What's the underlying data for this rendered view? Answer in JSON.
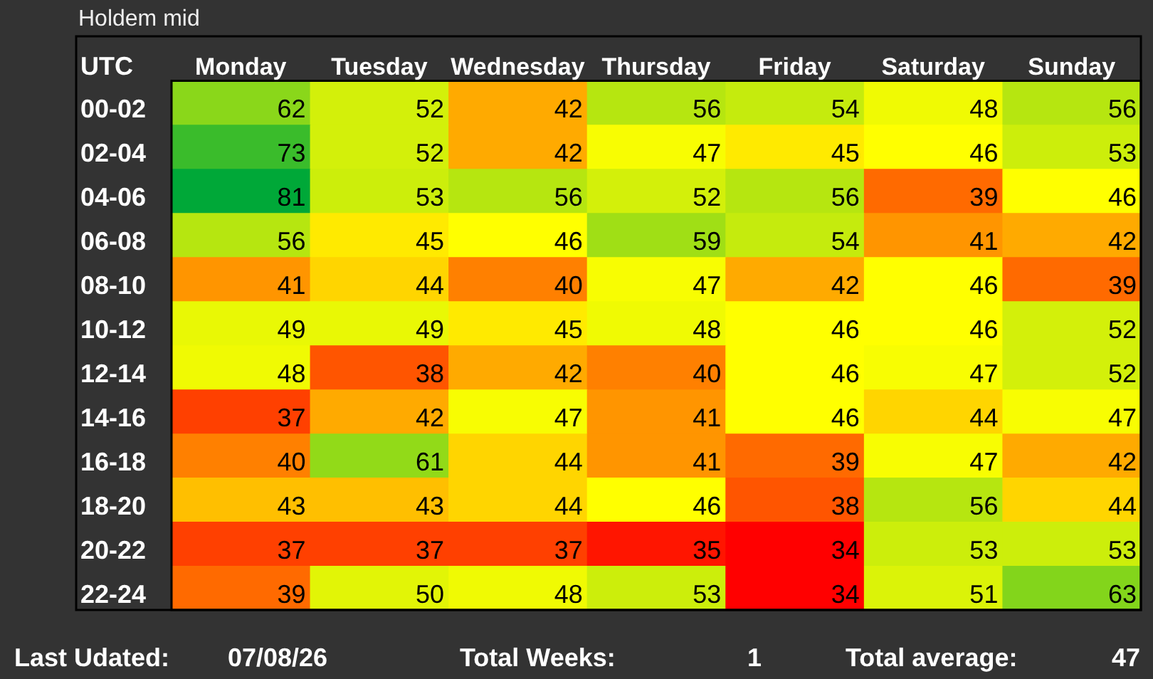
{
  "chart_data": {
    "type": "heatmap",
    "title": "Holdem mid",
    "ylabel": "UTC",
    "categories": [
      "Monday",
      "Tuesday",
      "Wednesday",
      "Thursday",
      "Friday",
      "Saturday",
      "Sunday"
    ],
    "y_categories": [
      "00-02",
      "02-04",
      "04-06",
      "06-08",
      "08-10",
      "10-12",
      "12-14",
      "14-16",
      "16-18",
      "18-20",
      "20-22",
      "22-24"
    ],
    "cells": [
      [
        62,
        52,
        42,
        56,
        54,
        48,
        56
      ],
      [
        73,
        52,
        42,
        47,
        45,
        46,
        53
      ],
      [
        81,
        53,
        56,
        52,
        56,
        39,
        46
      ],
      [
        56,
        45,
        46,
        59,
        54,
        41,
        42
      ],
      [
        41,
        44,
        40,
        47,
        42,
        46,
        39
      ],
      [
        49,
        49,
        45,
        48,
        46,
        46,
        52
      ],
      [
        48,
        38,
        42,
        40,
        46,
        47,
        52
      ],
      [
        37,
        42,
        47,
        41,
        46,
        44,
        47
      ],
      [
        40,
        61,
        44,
        41,
        39,
        47,
        42
      ],
      [
        43,
        43,
        44,
        46,
        38,
        56,
        44
      ],
      [
        37,
        37,
        37,
        35,
        34,
        53,
        53
      ],
      [
        39,
        50,
        48,
        53,
        34,
        51,
        63
      ]
    ],
    "data_labels": true,
    "annotations": [
      "Last Udated:",
      "07/08/26",
      "Total Weeks:",
      "1",
      "Total average:",
      "47"
    ]
  }
}
